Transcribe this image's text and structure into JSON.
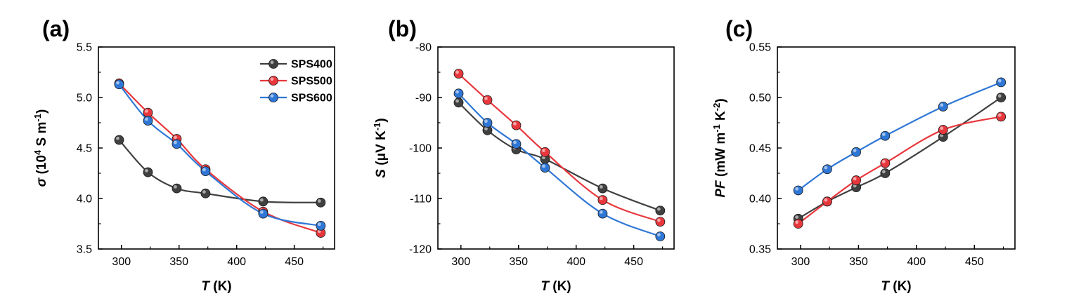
{
  "colors": {
    "SPS400": "#404040",
    "SPS500": "#e8373c",
    "SPS600": "#2f77d6"
  },
  "chart_data": [
    {
      "type": "line",
      "panel_label": "(a)",
      "xlabel": {
        "italic": "T",
        "rest": " (K)"
      },
      "ylabel": {
        "italic": "σ",
        "p1": " (10",
        "sup1": "4",
        "p2": " S m",
        "sup2": "-1",
        "p3": ")"
      },
      "xlim": [
        280,
        485
      ],
      "ylim": [
        3.5,
        5.5
      ],
      "xticks": [
        "300",
        "350",
        "400",
        "450"
      ],
      "yticks": [
        "3.5",
        "4.0",
        "4.5",
        "5.0",
        "5.5"
      ],
      "x": [
        298,
        323,
        348,
        373,
        423,
        473
      ],
      "legend": {
        "placement": "top-right"
      },
      "series": [
        {
          "name": "SPS400",
          "values": [
            4.58,
            4.26,
            4.1,
            4.05,
            3.97,
            3.96
          ]
        },
        {
          "name": "SPS500",
          "values": [
            5.14,
            4.85,
            4.59,
            4.29,
            3.87,
            3.66
          ]
        },
        {
          "name": "SPS600",
          "values": [
            5.13,
            4.77,
            4.54,
            4.27,
            3.85,
            3.73
          ]
        }
      ]
    },
    {
      "type": "line",
      "panel_label": "(b)",
      "xlabel": {
        "italic": "T",
        "rest": " (K)"
      },
      "ylabel": {
        "italic": "S",
        "p1": " (μV K",
        "sup1": "-1",
        "p2": ")",
        "sup2": "",
        "p3": ""
      },
      "xlim": [
        280,
        485
      ],
      "ylim": [
        -120,
        -80
      ],
      "xticks": [
        "300",
        "350",
        "400",
        "450"
      ],
      "yticks": [
        "-120",
        "-110",
        "-100",
        "-90",
        "-80"
      ],
      "x": [
        298,
        323,
        348,
        373,
        423,
        473
      ],
      "series": [
        {
          "name": "SPS400",
          "values": [
            -91.0,
            -96.5,
            -100.3,
            -102.2,
            -108.0,
            -112.4
          ]
        },
        {
          "name": "SPS500",
          "values": [
            -85.3,
            -90.5,
            -95.5,
            -100.8,
            -110.3,
            -114.6
          ]
        },
        {
          "name": "SPS600",
          "values": [
            -89.2,
            -95.0,
            -99.2,
            -103.9,
            -113.0,
            -117.5
          ]
        }
      ]
    },
    {
      "type": "line",
      "panel_label": "(c)",
      "xlabel": {
        "italic": "T",
        "rest": " (K)"
      },
      "ylabel": {
        "italic": "PF",
        "p1": " (mW m",
        "sup1": "-1",
        "p2": " K",
        "sup2": "-2",
        "p3": ")"
      },
      "xlim": [
        280,
        485
      ],
      "ylim": [
        0.35,
        0.55
      ],
      "xticks": [
        "300",
        "350",
        "400",
        "450"
      ],
      "yticks": [
        "0.35",
        "0.40",
        "0.45",
        "0.50",
        "0.55"
      ],
      "x": [
        298,
        323,
        348,
        373,
        423,
        473
      ],
      "series": [
        {
          "name": "SPS400",
          "values": [
            0.38,
            0.397,
            0.411,
            0.425,
            0.461,
            0.5
          ]
        },
        {
          "name": "SPS500",
          "values": [
            0.375,
            0.397,
            0.418,
            0.435,
            0.468,
            0.481
          ]
        },
        {
          "name": "SPS600",
          "values": [
            0.408,
            0.429,
            0.446,
            0.462,
            0.491,
            0.515
          ]
        }
      ]
    }
  ]
}
